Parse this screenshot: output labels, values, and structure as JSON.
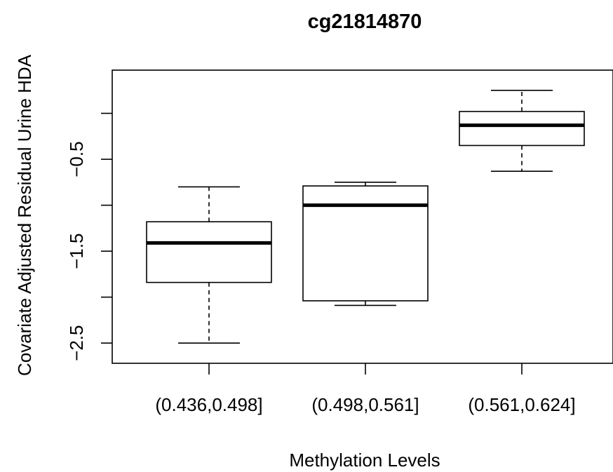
{
  "chart_data": {
    "type": "box",
    "title": "cg21814870",
    "xlabel": "Methylation Levels",
    "ylabel": "Covariate Adjusted Residual Urine HDA",
    "categories": [
      "(0.436,0.498]",
      "(0.498,0.561]",
      "(0.561,0.624]"
    ],
    "boxes": [
      {
        "category": "(0.436,0.498]",
        "whisker_low": -2.5,
        "q1": -1.84,
        "median": -1.41,
        "q3": -1.18,
        "whisker_high": -0.8
      },
      {
        "category": "(0.498,0.561]",
        "whisker_low": -2.09,
        "q1": -2.04,
        "median": -1.0,
        "q3": -0.79,
        "whisker_high": -0.75
      },
      {
        "category": "(0.561,0.624]",
        "whisker_low": -0.63,
        "q1": -0.35,
        "median": -0.13,
        "q3": 0.02,
        "whisker_high": 0.25
      }
    ],
    "y_ticks": [
      -2.5,
      -1.5,
      -0.5
    ],
    "ylim": [
      -2.72,
      0.47
    ],
    "grid": false,
    "legend": "none"
  }
}
